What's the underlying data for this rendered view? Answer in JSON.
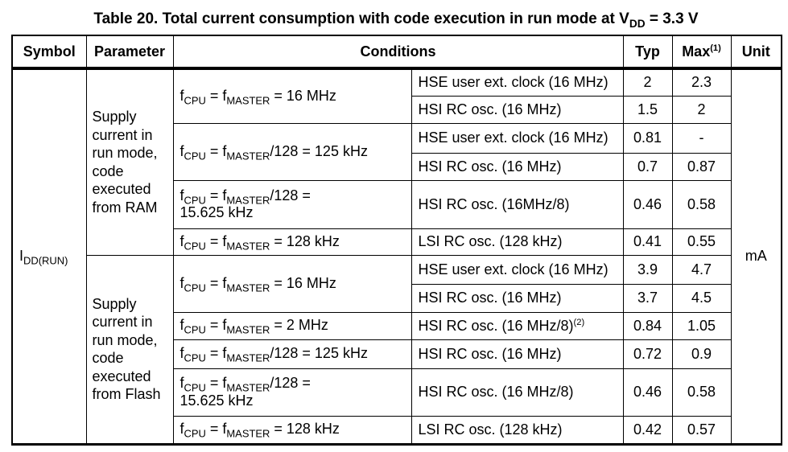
{
  "title": "Table 20. Total current consumption with code execution in run mode at V~DD~ = 3.3 V",
  "header": {
    "symbol": "Symbol",
    "parameter": "Parameter",
    "conditions": "Conditions",
    "typ": "Typ",
    "max": "Max^(1)^",
    "unit": "Unit"
  },
  "symbol": "I~DD(RUN)~",
  "unit": "mA",
  "groups": [
    {
      "parameter": "Supply current in run mode, code executed from RAM",
      "conditions": [
        {
          "frequency": "f~CPU~ = f~MASTER~ = 16 MHz",
          "rows": [
            {
              "clock": "HSE user ext. clock (16 MHz)",
              "typ": "2",
              "max": "2.3"
            },
            {
              "clock": "HSI RC osc. (16 MHz)",
              "typ": "1.5",
              "max": "2"
            }
          ]
        },
        {
          "frequency": "f~CPU~ = f~MASTER~/128 = 125 kHz",
          "rows": [
            {
              "clock": "HSE user ext. clock (16 MHz)",
              "typ": "0.81",
              "max": "-"
            },
            {
              "clock": "HSI RC osc. (16 MHz)",
              "typ": "0.7",
              "max": "0.87"
            }
          ]
        },
        {
          "frequency": "f~CPU~ = f~MASTER~/128 =\n15.625 kHz",
          "rows": [
            {
              "clock": "HSI RC osc. (16MHz/8)",
              "typ": "0.46",
              "max": "0.58"
            }
          ]
        },
        {
          "frequency": "f~CPU~ = f~MASTER~ = 128 kHz",
          "rows": [
            {
              "clock": "LSI RC osc. (128 kHz)",
              "typ": "0.41",
              "max": "0.55"
            }
          ]
        }
      ]
    },
    {
      "parameter": "Supply current in run mode, code executed from Flash",
      "conditions": [
        {
          "frequency": "f~CPU~ = f~MASTER~ = 16 MHz",
          "rows": [
            {
              "clock": "HSE user ext. clock (16 MHz)",
              "typ": "3.9",
              "max": "4.7"
            },
            {
              "clock": "HSI RC osc. (16 MHz)",
              "typ": "3.7",
              "max": "4.5"
            }
          ]
        },
        {
          "frequency": "f~CPU~ = f~MASTER~ = 2 MHz",
          "rows": [
            {
              "clock": "HSI RC osc. (16 MHz/8)^(2)^",
              "typ": "0.84",
              "max": "1.05"
            }
          ]
        },
        {
          "frequency": "f~CPU~ = f~MASTER~/128 = 125 kHz",
          "rows": [
            {
              "clock": "HSI RC osc. (16 MHz)",
              "typ": "0.72",
              "max": "0.9"
            }
          ]
        },
        {
          "frequency": "f~CPU~ = f~MASTER~/128 =\n15.625 kHz",
          "rows": [
            {
              "clock": "HSI RC osc. (16 MHz/8)",
              "typ": "0.46",
              "max": "0.58"
            }
          ]
        },
        {
          "frequency": "f~CPU~ = f~MASTER~ = 128 kHz",
          "rows": [
            {
              "clock": "LSI RC osc. (128 kHz)",
              "typ": "0.42",
              "max": "0.57"
            }
          ]
        }
      ]
    }
  ]
}
